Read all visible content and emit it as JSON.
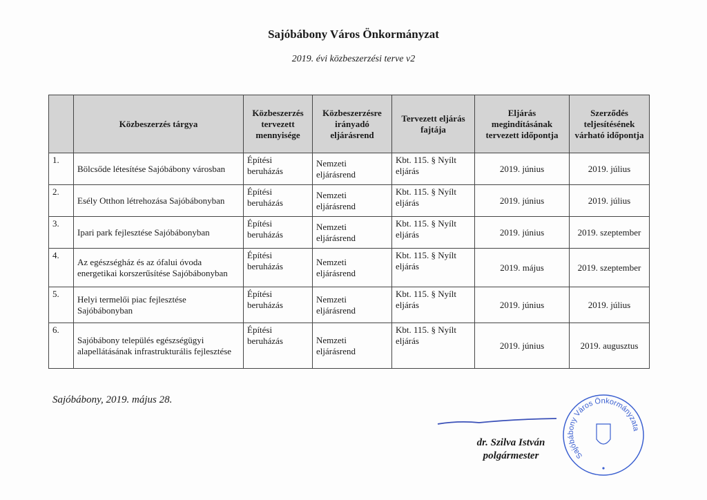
{
  "header": {
    "title": "Sajóbábony Város Önkormányzat",
    "subtitle": "2019. évi közbeszerzési terve v2"
  },
  "table": {
    "columns": [
      "",
      "Közbeszerzés tárgya",
      "Közbeszerzés tervezett mennyisége",
      "Közbeszerzésre irányadó eljárásrend",
      "Tervezett eljárás fajtája",
      "Eljárás megindításának tervezett időpontja",
      "Szerződés teljesítésének várható időpontja"
    ],
    "rows": [
      {
        "no": "1.",
        "subject": "Bölcsőde létesítése Sajóbábony városban",
        "qty": "Építési beruházás",
        "rend": "Nemzeti eljárásrend",
        "type": "Kbt. 115. § Nyílt eljárás",
        "start": "2019. június",
        "end": "2019. július"
      },
      {
        "no": "2.",
        "subject": "Esély Otthon létrehozása Sajóbábonyban",
        "qty": "Építési beruházás",
        "rend": "Nemzeti eljárásrend",
        "type": "Kbt. 115. § Nyílt eljárás",
        "start": "2019. június",
        "end": "2019. július"
      },
      {
        "no": "3.",
        "subject": "Ipari park fejlesztése Sajóbábonyban",
        "qty": "Építési beruházás",
        "rend": "Nemzeti eljárásrend",
        "type": "Kbt. 115. § Nyílt eljárás",
        "start": "2019. június",
        "end": "2019. szeptember"
      },
      {
        "no": "4.",
        "subject": "Az egészségház és az ófalui óvoda energetikai korszerűsítése Sajóbábonyban",
        "qty": "Építési beruházás",
        "rend": "Nemzeti eljárásrend",
        "type": "Kbt. 115. § Nyílt eljárás",
        "start": "2019. május",
        "end": "2019. szeptember"
      },
      {
        "no": "5.",
        "subject": "Helyi termelői piac fejlesztése Sajóbábonyban",
        "qty": "Építési beruházás",
        "rend": "Nemzeti eljárásrend",
        "type": "Kbt. 115. § Nyílt eljárás",
        "start": "2019. június",
        "end": "2019. július"
      },
      {
        "no": "6.",
        "subject": "Sajóbábony település egészségügyi alapellátásának infrastrukturális fejlesztése",
        "qty": "Építési beruházás",
        "rend": "Nemzeti eljárásrend",
        "type": "Kbt. 115. § Nyílt eljárás",
        "start": "2019. június",
        "end": "2019. augusztus"
      }
    ]
  },
  "footer": {
    "place_date": "Sajóbábony, 2019. május 28.",
    "signer_name": "dr. Szilva István",
    "signer_title": "polgármester",
    "stamp_text": "Sajóbábony Város Önkormányzata",
    "stamp_color": "#3a5fd0"
  }
}
